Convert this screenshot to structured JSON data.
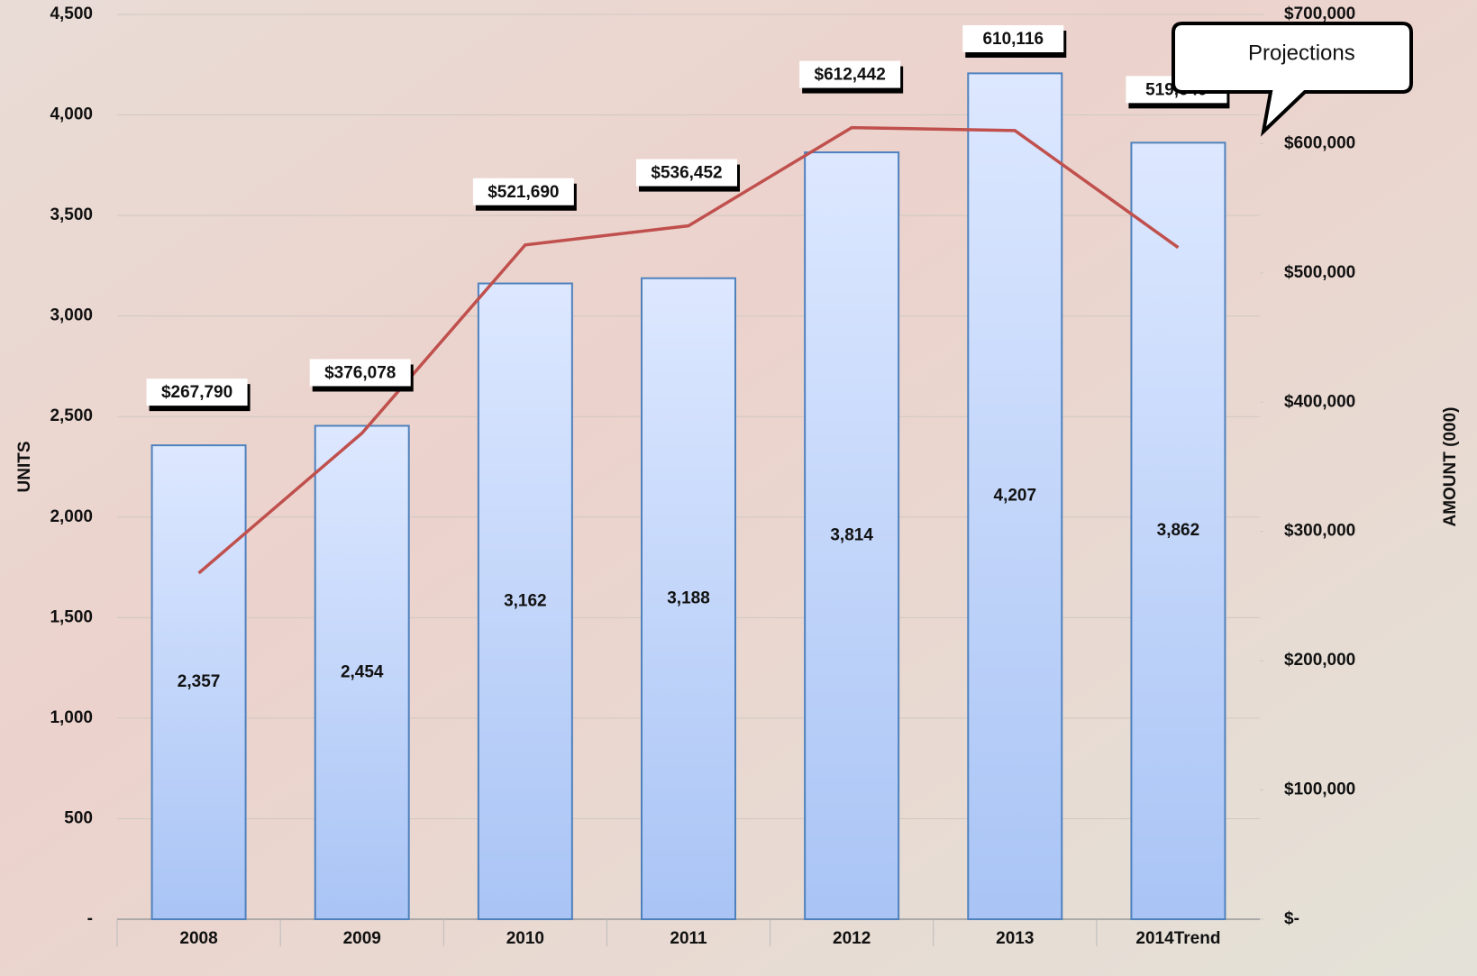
{
  "chart_data": {
    "type": "bar",
    "categories": [
      "2008",
      "2009",
      "2010",
      "2011",
      "2012",
      "2013",
      "2014Trend"
    ],
    "series": [
      {
        "name": "Units",
        "type": "bar",
        "color": "#4f81bd",
        "values": [
          2357,
          2454,
          3162,
          3188,
          3814,
          4207,
          3862
        ],
        "value_labels": [
          "2,357",
          "2,454",
          "3,162",
          "3,188",
          "3,814",
          "4,207",
          "3,862"
        ]
      },
      {
        "name": "Amount",
        "type": "line",
        "axis": "y2",
        "color": "#c0504d",
        "values": [
          267790,
          376078,
          521690,
          536452,
          612442,
          610116,
          519649
        ],
        "value_labels": [
          "$267,790",
          "$376,078",
          "$521,690",
          "$536,452",
          "$612,442",
          "610,116",
          "519,649"
        ]
      }
    ],
    "ylabel": "UNITS",
    "y2label": "AMOUNT (000)",
    "ylim": [
      0,
      4500
    ],
    "yticks": [
      {
        "value": 0,
        "label": "-"
      },
      500,
      {
        "value": 1000,
        "label": "1,000"
      },
      {
        "value": 1500,
        "label": "1,500"
      },
      {
        "value": 2000,
        "label": "2,000"
      },
      {
        "value": 2500,
        "label": "2,500"
      },
      {
        "value": 3000,
        "label": "3,000"
      },
      {
        "value": 3500,
        "label": "3,500"
      },
      {
        "value": 4000,
        "label": "4,000"
      },
      {
        "value": 4500,
        "label": "4,500"
      }
    ],
    "y2lim": [
      0,
      700000
    ],
    "y2ticks": [
      {
        "value": 0,
        "label": "$-"
      },
      {
        "value": 100000,
        "label": "$100,000"
      },
      {
        "value": 200000,
        "label": "$200,000"
      },
      {
        "value": 300000,
        "label": "$300,000"
      },
      {
        "value": 400000,
        "label": "$400,000"
      },
      {
        "value": 500000,
        "label": "$500,000"
      },
      {
        "value": 600000,
        "label": "$600,000"
      },
      {
        "value": 700000,
        "label": "$700,000"
      }
    ],
    "grid": true,
    "annotation": "Projections"
  }
}
